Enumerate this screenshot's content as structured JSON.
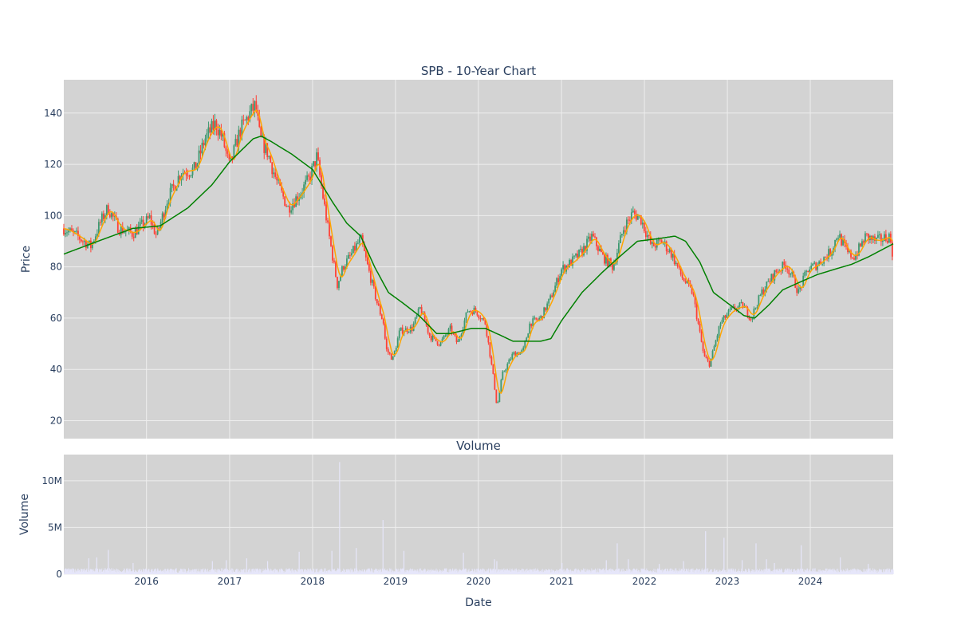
{
  "chart_data": [
    {
      "type": "candlestick",
      "title": "SPB - 10-Year Chart",
      "xlabel": "",
      "ylabel": "Price",
      "ylim": [
        13,
        153
      ],
      "x_range": [
        "2015-01-02",
        "2024-12-31"
      ],
      "grid": true,
      "legend": "none",
      "background": "#d3d3d3",
      "colors": {
        "up": "#3d9970",
        "down": "#ff4136",
        "ma_short": "#ffa500",
        "ma_long": "#008000"
      },
      "y_ticks": [
        20,
        40,
        60,
        80,
        100,
        120,
        140
      ],
      "x_tick_labels": [
        "2016",
        "2017",
        "2018",
        "2019",
        "2020",
        "2021",
        "2022",
        "2023",
        "2024"
      ],
      "close_path": [
        [
          "2015-01-02",
          95
        ],
        [
          "2015-03-01",
          92
        ],
        [
          "2015-05-01",
          88
        ],
        [
          "2015-06-15",
          98
        ],
        [
          "2015-07-15",
          103
        ],
        [
          "2015-09-01",
          95
        ],
        [
          "2015-11-01",
          93
        ],
        [
          "2016-01-15",
          99
        ],
        [
          "2016-02-15",
          92
        ],
        [
          "2016-04-01",
          106
        ],
        [
          "2016-06-01",
          117
        ],
        [
          "2016-08-01",
          118
        ],
        [
          "2016-09-15",
          130
        ],
        [
          "2016-11-01",
          136
        ],
        [
          "2016-12-01",
          130
        ],
        [
          "2017-01-01",
          119
        ],
        [
          "2017-02-15",
          133
        ],
        [
          "2017-04-01",
          140
        ],
        [
          "2017-04-25",
          143
        ],
        [
          "2017-05-15",
          130
        ],
        [
          "2017-06-15",
          125
        ],
        [
          "2017-08-01",
          112
        ],
        [
          "2017-09-15",
          103
        ],
        [
          "2017-11-01",
          108
        ],
        [
          "2017-12-15",
          114
        ],
        [
          "2018-01-20",
          123
        ],
        [
          "2018-02-20",
          105
        ],
        [
          "2018-03-15",
          92
        ],
        [
          "2018-04-20",
          73
        ],
        [
          "2018-05-15",
          80
        ],
        [
          "2018-06-15",
          84
        ],
        [
          "2018-08-01",
          91
        ],
        [
          "2018-09-01",
          80
        ],
        [
          "2018-10-15",
          65
        ],
        [
          "2018-11-10",
          58
        ],
        [
          "2018-11-20",
          48
        ],
        [
          "2018-12-20",
          44
        ],
        [
          "2019-01-20",
          55
        ],
        [
          "2019-03-15",
          56
        ],
        [
          "2019-04-20",
          64
        ],
        [
          "2019-06-01",
          53
        ],
        [
          "2019-07-15",
          50
        ],
        [
          "2019-09-01",
          56
        ],
        [
          "2019-10-01",
          50
        ],
        [
          "2019-11-15",
          63
        ],
        [
          "2019-12-20",
          63
        ],
        [
          "2020-02-01",
          58
        ],
        [
          "2020-03-10",
          35
        ],
        [
          "2020-03-23",
          25
        ],
        [
          "2020-04-15",
          38
        ],
        [
          "2020-06-01",
          46
        ],
        [
          "2020-07-15",
          47
        ],
        [
          "2020-08-15",
          58
        ],
        [
          "2020-10-01",
          60
        ],
        [
          "2020-11-15",
          68
        ],
        [
          "2021-01-01",
          79
        ],
        [
          "2021-02-15",
          82
        ],
        [
          "2021-04-01",
          86
        ],
        [
          "2021-05-15",
          92
        ],
        [
          "2021-07-01",
          84
        ],
        [
          "2021-08-15",
          80
        ],
        [
          "2021-10-01",
          95
        ],
        [
          "2021-11-10",
          101
        ],
        [
          "2021-12-15",
          99
        ],
        [
          "2022-02-01",
          88
        ],
        [
          "2022-03-20",
          90
        ],
        [
          "2022-05-01",
          85
        ],
        [
          "2022-06-15",
          76
        ],
        [
          "2022-08-01",
          70
        ],
        [
          "2022-09-20",
          45
        ],
        [
          "2022-10-15",
          42
        ],
        [
          "2022-12-01",
          58
        ],
        [
          "2023-01-15",
          63
        ],
        [
          "2023-03-10",
          65
        ],
        [
          "2023-04-15",
          60
        ],
        [
          "2023-06-01",
          70
        ],
        [
          "2023-08-01",
          78
        ],
        [
          "2023-09-15",
          81
        ],
        [
          "2023-10-15",
          76
        ],
        [
          "2023-11-10",
          70
        ],
        [
          "2023-12-20",
          79
        ],
        [
          "2024-02-01",
          81
        ],
        [
          "2024-04-01",
          86
        ],
        [
          "2024-05-01",
          93
        ],
        [
          "2024-06-15",
          85
        ],
        [
          "2024-07-15",
          84
        ],
        [
          "2024-09-01",
          92
        ],
        [
          "2024-10-15",
          90
        ],
        [
          "2024-12-15",
          92
        ],
        [
          "2024-12-31",
          84
        ]
      ],
      "long_ma_path": [
        [
          "2015-01-02",
          85
        ],
        [
          "2015-06-01",
          90
        ],
        [
          "2015-11-01",
          95
        ],
        [
          "2016-03-01",
          96
        ],
        [
          "2016-07-01",
          103
        ],
        [
          "2016-10-15",
          112
        ],
        [
          "2017-01-01",
          121
        ],
        [
          "2017-04-15",
          130
        ],
        [
          "2017-05-20",
          131
        ],
        [
          "2017-07-01",
          129
        ],
        [
          "2017-10-01",
          124
        ],
        [
          "2018-01-01",
          118
        ],
        [
          "2018-04-01",
          105
        ],
        [
          "2018-06-01",
          97
        ],
        [
          "2018-08-01",
          92
        ],
        [
          "2018-10-01",
          80
        ],
        [
          "2018-12-01",
          70
        ],
        [
          "2019-02-01",
          66
        ],
        [
          "2019-04-15",
          61
        ],
        [
          "2019-07-01",
          54
        ],
        [
          "2019-09-01",
          54
        ],
        [
          "2019-12-01",
          56
        ],
        [
          "2020-02-01",
          56
        ],
        [
          "2020-04-15",
          53
        ],
        [
          "2020-06-01",
          51
        ],
        [
          "2020-08-01",
          51
        ],
        [
          "2020-10-01",
          51
        ],
        [
          "2020-11-15",
          52
        ],
        [
          "2021-01-01",
          59
        ],
        [
          "2021-04-01",
          70
        ],
        [
          "2021-07-01",
          78
        ],
        [
          "2021-09-01",
          83
        ],
        [
          "2021-12-01",
          90
        ],
        [
          "2022-03-01",
          91
        ],
        [
          "2022-05-15",
          92
        ],
        [
          "2022-07-01",
          90
        ],
        [
          "2022-09-01",
          82
        ],
        [
          "2022-11-01",
          70
        ],
        [
          "2023-01-15",
          65
        ],
        [
          "2023-03-15",
          61
        ],
        [
          "2023-05-01",
          60
        ],
        [
          "2023-07-01",
          65
        ],
        [
          "2023-09-01",
          71
        ],
        [
          "2023-11-15",
          74
        ],
        [
          "2024-02-01",
          77
        ],
        [
          "2024-04-15",
          79
        ],
        [
          "2024-07-01",
          81
        ],
        [
          "2024-09-15",
          84
        ],
        [
          "2024-12-31",
          89
        ]
      ]
    },
    {
      "type": "bar",
      "title": "Volume",
      "xlabel": "Date",
      "ylabel": "Volume",
      "ylim": [
        0,
        12800000
      ],
      "grid": true,
      "background": "#d3d3d3",
      "bar_color": "#e6e6fa",
      "y_ticks": [
        0,
        5000000,
        10000000
      ],
      "y_tick_labels": [
        "0",
        "5M",
        "10M"
      ],
      "x_tick_labels": [
        "2016",
        "2017",
        "2018",
        "2019",
        "2020",
        "2021",
        "2022",
        "2023",
        "2024"
      ],
      "baseline_volume": 400000,
      "spikes": [
        [
          "2015-04-20",
          1700000
        ],
        [
          "2015-05-25",
          1800000
        ],
        [
          "2015-07-15",
          2600000
        ],
        [
          "2015-11-01",
          1200000
        ],
        [
          "2016-10-15",
          1400000
        ],
        [
          "2016-12-15",
          1500000
        ],
        [
          "2017-03-15",
          1700000
        ],
        [
          "2017-06-15",
          1400000
        ],
        [
          "2017-11-01",
          2400000
        ],
        [
          "2018-03-25",
          2500000
        ],
        [
          "2018-04-28",
          12000000
        ],
        [
          "2018-07-10",
          2800000
        ],
        [
          "2018-11-05",
          5800000
        ],
        [
          "2019-02-05",
          2500000
        ],
        [
          "2019-10-25",
          2300000
        ],
        [
          "2020-03-10",
          1600000
        ],
        [
          "2020-03-20",
          1400000
        ],
        [
          "2021-01-01",
          1200000
        ],
        [
          "2021-07-15",
          1500000
        ],
        [
          "2021-09-01",
          3300000
        ],
        [
          "2021-10-20",
          1600000
        ],
        [
          "2022-03-05",
          1100000
        ],
        [
          "2022-06-20",
          1400000
        ],
        [
          "2022-09-25",
          4600000
        ],
        [
          "2022-12-15",
          3900000
        ],
        [
          "2023-03-05",
          1500000
        ],
        [
          "2023-05-05",
          3300000
        ],
        [
          "2023-06-20",
          1600000
        ],
        [
          "2023-07-25",
          1200000
        ],
        [
          "2023-11-20",
          3100000
        ],
        [
          "2024-05-10",
          1800000
        ],
        [
          "2024-09-10",
          1100000
        ]
      ]
    }
  ],
  "x_axis_title": "Date"
}
